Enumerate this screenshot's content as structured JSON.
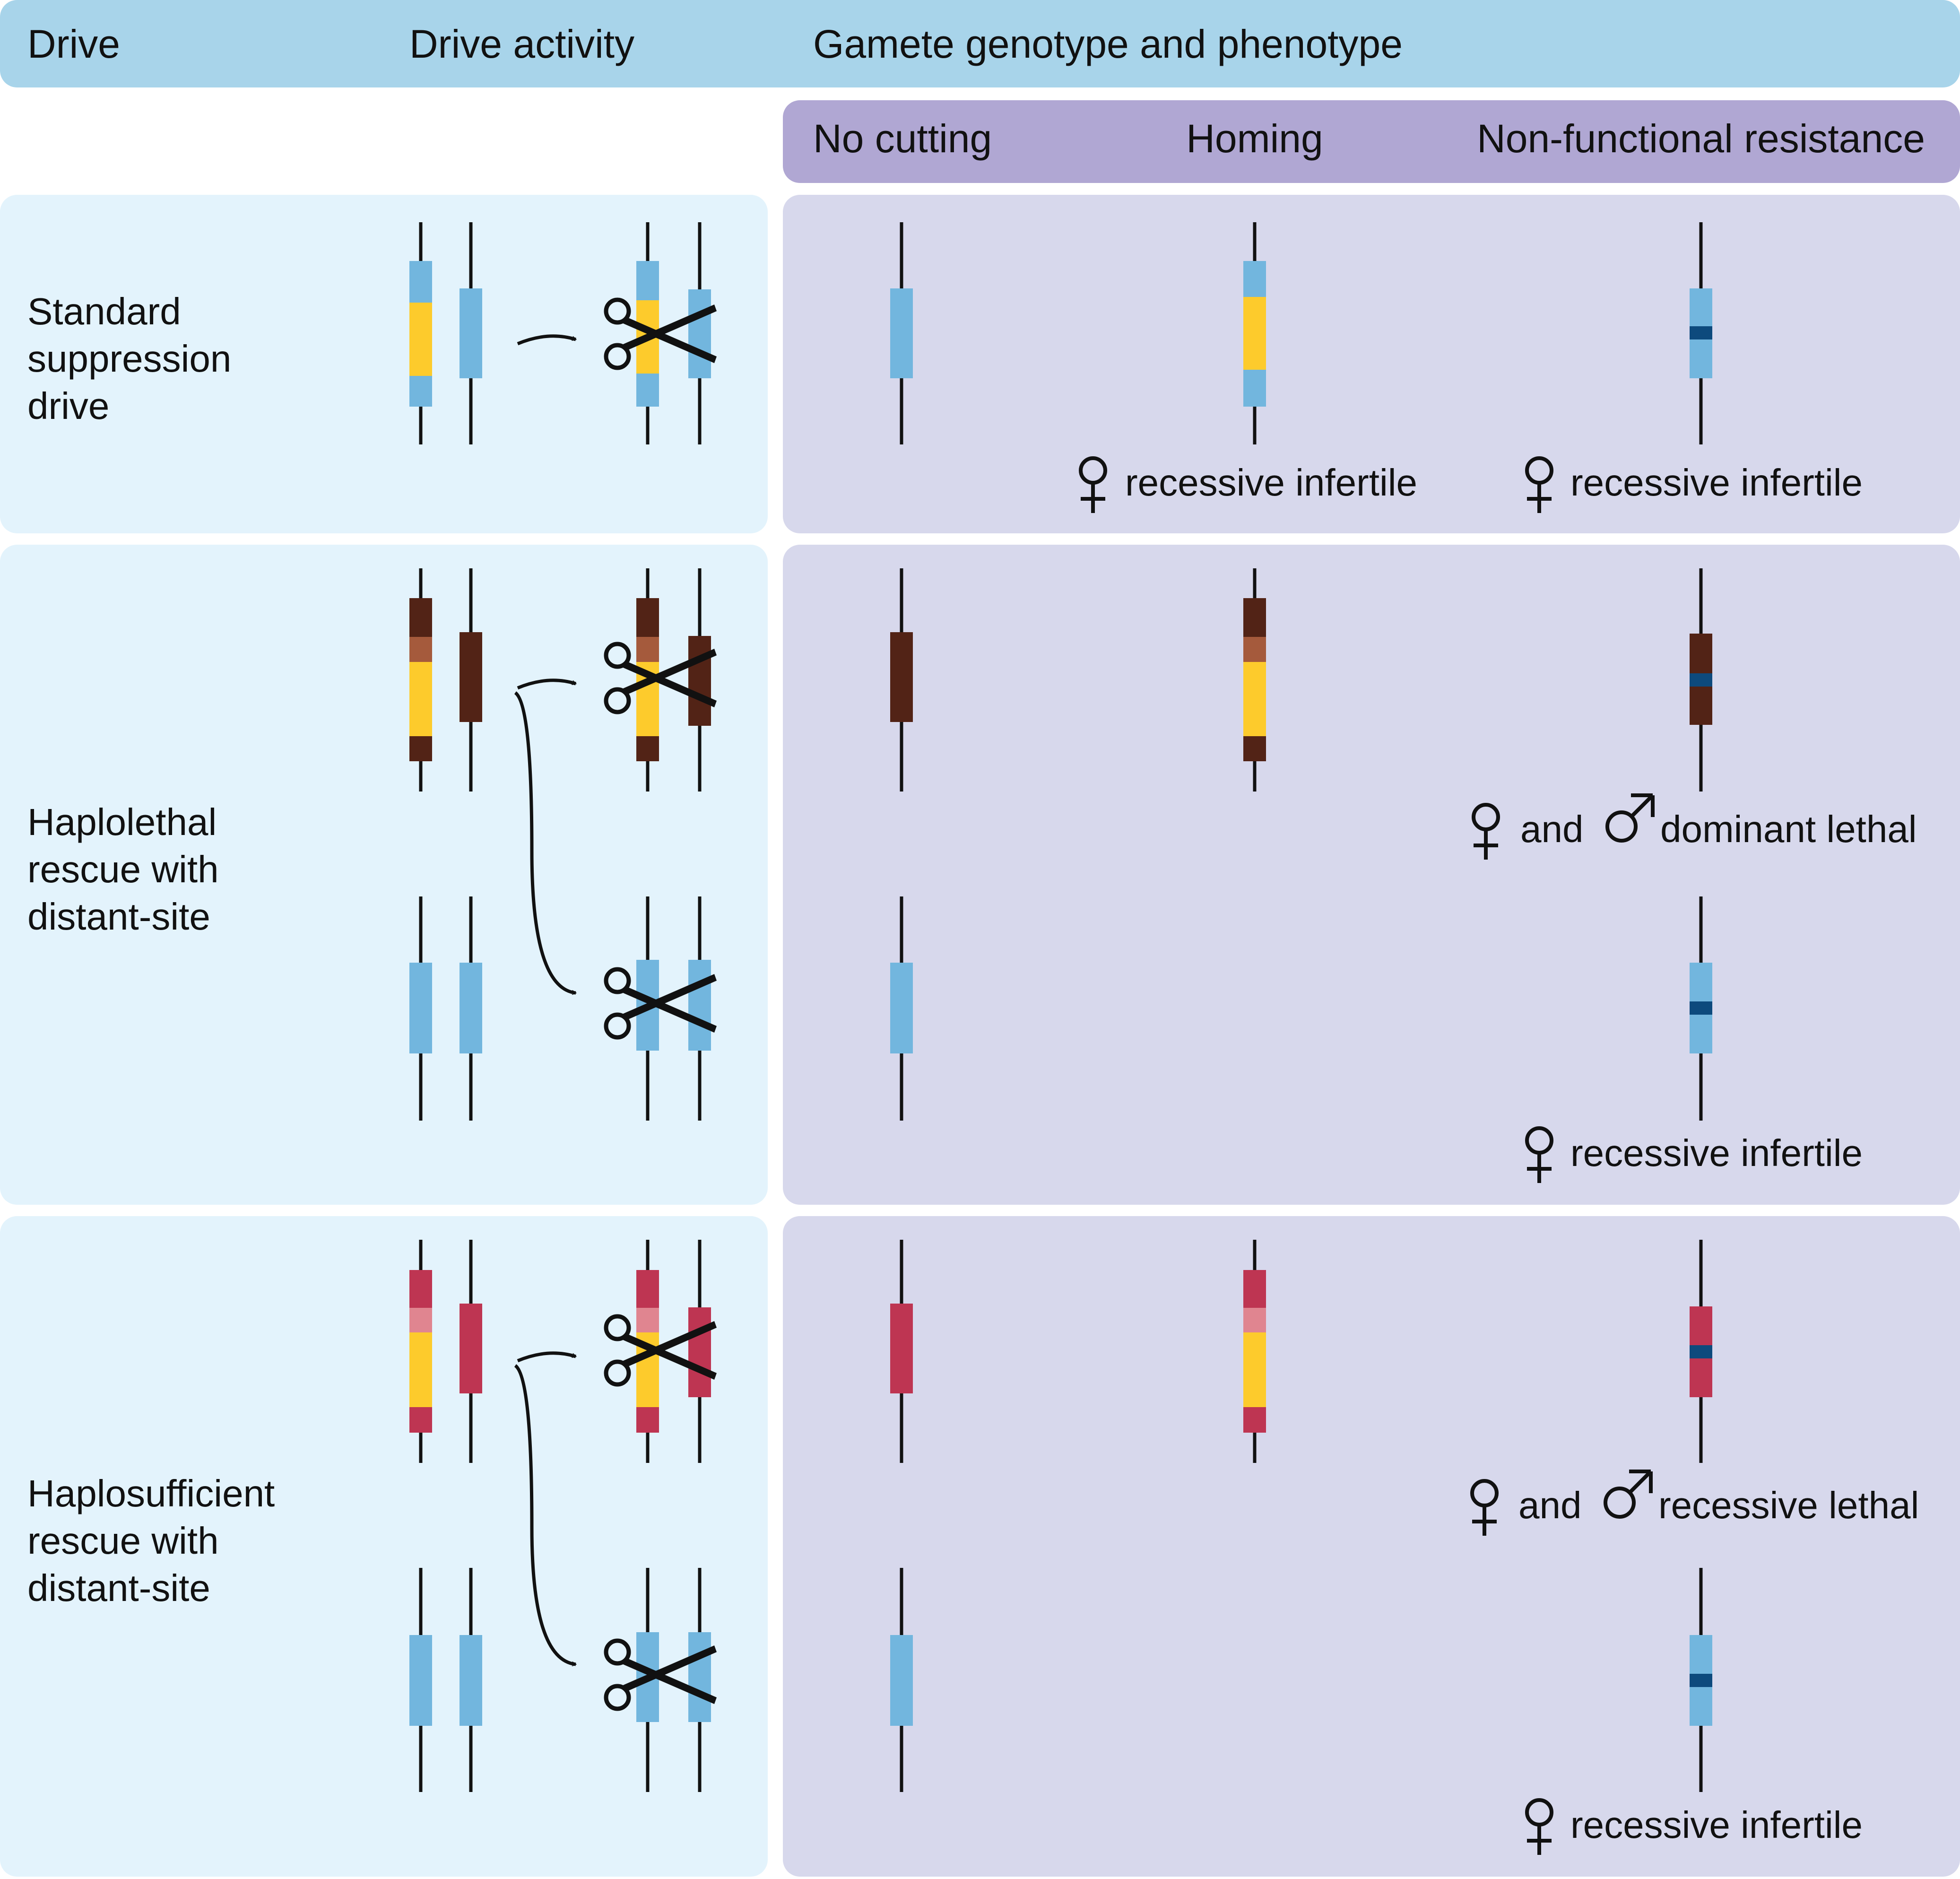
{
  "header": {
    "col_drive": "Drive",
    "col_activity": "Drive activity",
    "col_gamete": "Gamete genotype and phenotype"
  },
  "subheader": {
    "no_cutting": "No cutting",
    "homing": "Homing",
    "nonfunctional": "Non-functional resistance"
  },
  "rows": {
    "standard": {
      "label_lines": [
        "Standard",
        "suppression",
        "drive"
      ],
      "homing_phenotype": "recessive infertile",
      "resistance_phenotype": "recessive infertile"
    },
    "haplolethal": {
      "label_lines": [
        "Haplolethal",
        "rescue with",
        "distant-site"
      ],
      "resistance_phenotype_and": "and",
      "resistance_phenotype": "dominant lethal",
      "distant_resistance_phenotype": "recessive infertile"
    },
    "haplosufficient": {
      "label_lines": [
        "Haplosufficient",
        "rescue with",
        "distant-site"
      ],
      "resistance_phenotype_and": "and",
      "resistance_phenotype": "recessive lethal",
      "distant_resistance_phenotype": "recessive infertile"
    }
  },
  "colors": {
    "header_bar": "#a8d4ea",
    "subheader_bar": "#b0a7d3",
    "left_panel": "#e3f3fc",
    "right_panel": "#d7d8ec",
    "target_blue": "#72b6de",
    "drive_yellow": "#fdcb2c",
    "haplolethal_brown": "#522316",
    "haplolethal_recoded": "#a55a3c",
    "haplosufficient_red": "#be3552",
    "haplosufficient_recoded": "#e08590",
    "resistance_mark": "#0d4a7d"
  },
  "icons": [
    "scissors-icon",
    "female-symbol-icon",
    "male-symbol-icon",
    "arrow-icon"
  ]
}
